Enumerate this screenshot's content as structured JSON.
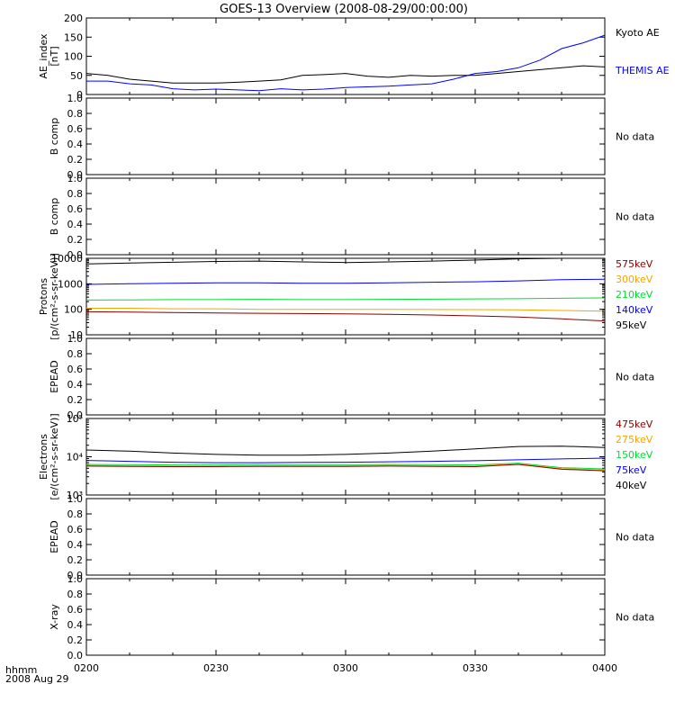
{
  "title": "GOES-13 Overview (2008-08-29/00:00:00)",
  "footer": {
    "line1": "hhmm",
    "line2": "2008 Aug 29"
  },
  "x_axis": {
    "ticks": [
      "0200",
      "0230",
      "0300",
      "0330",
      "0400"
    ],
    "tick_minutes": [
      120,
      150,
      180,
      210,
      240
    ],
    "range_minutes": [
      120,
      240
    ]
  },
  "colors": {
    "black": "#000000",
    "blue": "#0000ff",
    "green": "#00dd33",
    "orange": "#f5a500",
    "darkred": "#880000"
  },
  "chart_data": [
    {
      "type": "line",
      "panel": "ae",
      "ylabel": "AE_index",
      "ylabel2": "[nT]",
      "ylim": [
        0,
        200
      ],
      "yticks": [
        "0",
        "50",
        "100",
        "150",
        "200"
      ],
      "series": [
        {
          "name": "Kyoto AE",
          "color": "#000000",
          "x": [
            120,
            125,
            130,
            135,
            140,
            145,
            150,
            155,
            160,
            165,
            170,
            175,
            180,
            185,
            190,
            195,
            200,
            205,
            210,
            215,
            220,
            225,
            230,
            235,
            240
          ],
          "values": [
            55,
            50,
            40,
            35,
            30,
            30,
            30,
            32,
            35,
            38,
            50,
            52,
            55,
            48,
            45,
            50,
            48,
            50,
            50,
            55,
            60,
            65,
            70,
            75,
            72
          ]
        },
        {
          "name": "THEMIS AE",
          "color": "#0000ff",
          "x": [
            120,
            125,
            130,
            135,
            140,
            145,
            150,
            155,
            160,
            165,
            170,
            175,
            180,
            185,
            190,
            195,
            200,
            205,
            210,
            215,
            220,
            225,
            230,
            235,
            240
          ],
          "values": [
            35,
            35,
            28,
            25,
            15,
            12,
            14,
            12,
            10,
            15,
            12,
            14,
            18,
            20,
            22,
            25,
            28,
            40,
            55,
            60,
            70,
            90,
            120,
            135,
            155
          ]
        }
      ]
    },
    {
      "panel": "nodata1",
      "ylabel": "B comp",
      "ylim": [
        0,
        1
      ],
      "yticks": [
        "0.0",
        "0.2",
        "0.4",
        "0.6",
        "0.8",
        "1.0"
      ],
      "nodata": "No data"
    },
    {
      "panel": "nodata2",
      "ylabel": "B comp",
      "ylim": [
        0,
        1
      ],
      "yticks": [
        "0.0",
        "0.2",
        "0.4",
        "0.6",
        "0.8",
        "1.0"
      ],
      "nodata": "No data"
    },
    {
      "type": "line",
      "panel": "protons",
      "ylabel": "Protons",
      "ylabel2": "[p/(cm²-s-sr-keV)]",
      "scale": "log",
      "ylim": [
        10,
        10000
      ],
      "yticks": [
        "10",
        "100",
        "1000",
        "10000"
      ],
      "legend": [
        "575keV",
        "300keV",
        "210keV",
        "140keV",
        "95keV"
      ],
      "legend_colors": [
        "#880000",
        "#f5a500",
        "#00dd33",
        "#0000ff",
        "#000000"
      ],
      "series": [
        {
          "color": "#000000",
          "x": [
            120,
            130,
            140,
            150,
            160,
            170,
            180,
            190,
            200,
            210,
            220,
            230,
            240
          ],
          "values": [
            6000,
            6500,
            7000,
            7500,
            7800,
            7200,
            6800,
            7200,
            7800,
            8500,
            9500,
            10500,
            10000
          ]
        },
        {
          "color": "#0000ff",
          "x": [
            120,
            130,
            140,
            150,
            160,
            170,
            180,
            190,
            200,
            210,
            220,
            230,
            240
          ],
          "values": [
            950,
            1000,
            1050,
            1100,
            1100,
            1050,
            1050,
            1100,
            1150,
            1200,
            1300,
            1450,
            1500
          ]
        },
        {
          "color": "#00dd33",
          "x": [
            120,
            130,
            140,
            150,
            160,
            170,
            180,
            190,
            200,
            210,
            220,
            230,
            240
          ],
          "values": [
            230,
            235,
            240,
            240,
            245,
            240,
            240,
            245,
            250,
            255,
            260,
            270,
            280
          ]
        },
        {
          "color": "#f5a500",
          "x": [
            120,
            130,
            140,
            150,
            160,
            170,
            180,
            190,
            200,
            210,
            220,
            230,
            240
          ],
          "values": [
            110,
            110,
            105,
            105,
            100,
            100,
            100,
            100,
            98,
            97,
            95,
            90,
            85
          ]
        },
        {
          "color": "#880000",
          "x": [
            120,
            130,
            140,
            150,
            160,
            170,
            180,
            190,
            200,
            210,
            220,
            230,
            240
          ],
          "values": [
            80,
            78,
            75,
            72,
            70,
            68,
            66,
            64,
            60,
            55,
            50,
            42,
            35
          ]
        }
      ]
    },
    {
      "panel": "nodata3",
      "ylabel": "EPEAD",
      "ylim": [
        0,
        1
      ],
      "yticks": [
        "0.0",
        "0.2",
        "0.4",
        "0.6",
        "0.8",
        "1.0"
      ],
      "nodata": "No data"
    },
    {
      "type": "line",
      "panel": "electrons",
      "ylabel": "Electrons",
      "ylabel2": "[e/(cm²-s-sr-keV)]",
      "scale": "log",
      "ylim": [
        1000,
        100000
      ],
      "yticks": [
        "10³",
        "10⁴",
        "10⁵"
      ],
      "legend": [
        "475keV",
        "275keV",
        "150keV",
        "75keV",
        "40keV"
      ],
      "legend_colors": [
        "#880000",
        "#f5a500",
        "#00dd33",
        "#0000ff",
        "#000000"
      ],
      "series": [
        {
          "color": "#000000",
          "x": [
            120,
            130,
            140,
            150,
            160,
            170,
            180,
            190,
            200,
            210,
            220,
            230,
            240
          ],
          "values": [
            15000,
            14000,
            12500,
            11500,
            11000,
            11000,
            11500,
            12500,
            14000,
            16000,
            18500,
            19000,
            17500
          ]
        },
        {
          "color": "#0000ff",
          "x": [
            120,
            130,
            140,
            150,
            160,
            170,
            180,
            190,
            200,
            210,
            220,
            230,
            240
          ],
          "values": [
            8000,
            7600,
            7200,
            7000,
            7000,
            7100,
            7200,
            7400,
            7600,
            7900,
            8300,
            8800,
            9200
          ]
        },
        {
          "color": "#00dd33",
          "x": [
            120,
            130,
            140,
            150,
            160,
            170,
            180,
            190,
            200,
            210,
            220,
            230,
            240
          ],
          "values": [
            6300,
            6200,
            6100,
            6100,
            6200,
            6200,
            6200,
            6300,
            6200,
            6100,
            6800,
            5200,
            4800
          ]
        },
        {
          "color": "#f5a500",
          "x": [
            120,
            130,
            140,
            150,
            160,
            170,
            180,
            190,
            200,
            210,
            220,
            230,
            240
          ],
          "values": [
            5900,
            5800,
            5700,
            5700,
            5800,
            5800,
            5800,
            5900,
            5800,
            5700,
            6500,
            4900,
            4500
          ]
        },
        {
          "color": "#880000",
          "x": [
            120,
            130,
            140,
            150,
            160,
            170,
            180,
            190,
            200,
            210,
            220,
            230,
            240
          ],
          "values": [
            5700,
            5600,
            5500,
            5500,
            5600,
            5600,
            5600,
            5700,
            5600,
            5500,
            6300,
            4700,
            4300
          ]
        }
      ]
    },
    {
      "panel": "nodata4",
      "ylabel": "EPEAD",
      "ylim": [
        0,
        1
      ],
      "yticks": [
        "0.0",
        "0.2",
        "0.4",
        "0.6",
        "0.8",
        "1.0"
      ],
      "nodata": "No data"
    },
    {
      "panel": "nodata5",
      "ylabel": "X-ray",
      "ylim": [
        0,
        1
      ],
      "yticks": [
        "0.0",
        "0.2",
        "0.4",
        "0.6",
        "0.8",
        "1.0"
      ],
      "nodata": "No data"
    }
  ]
}
